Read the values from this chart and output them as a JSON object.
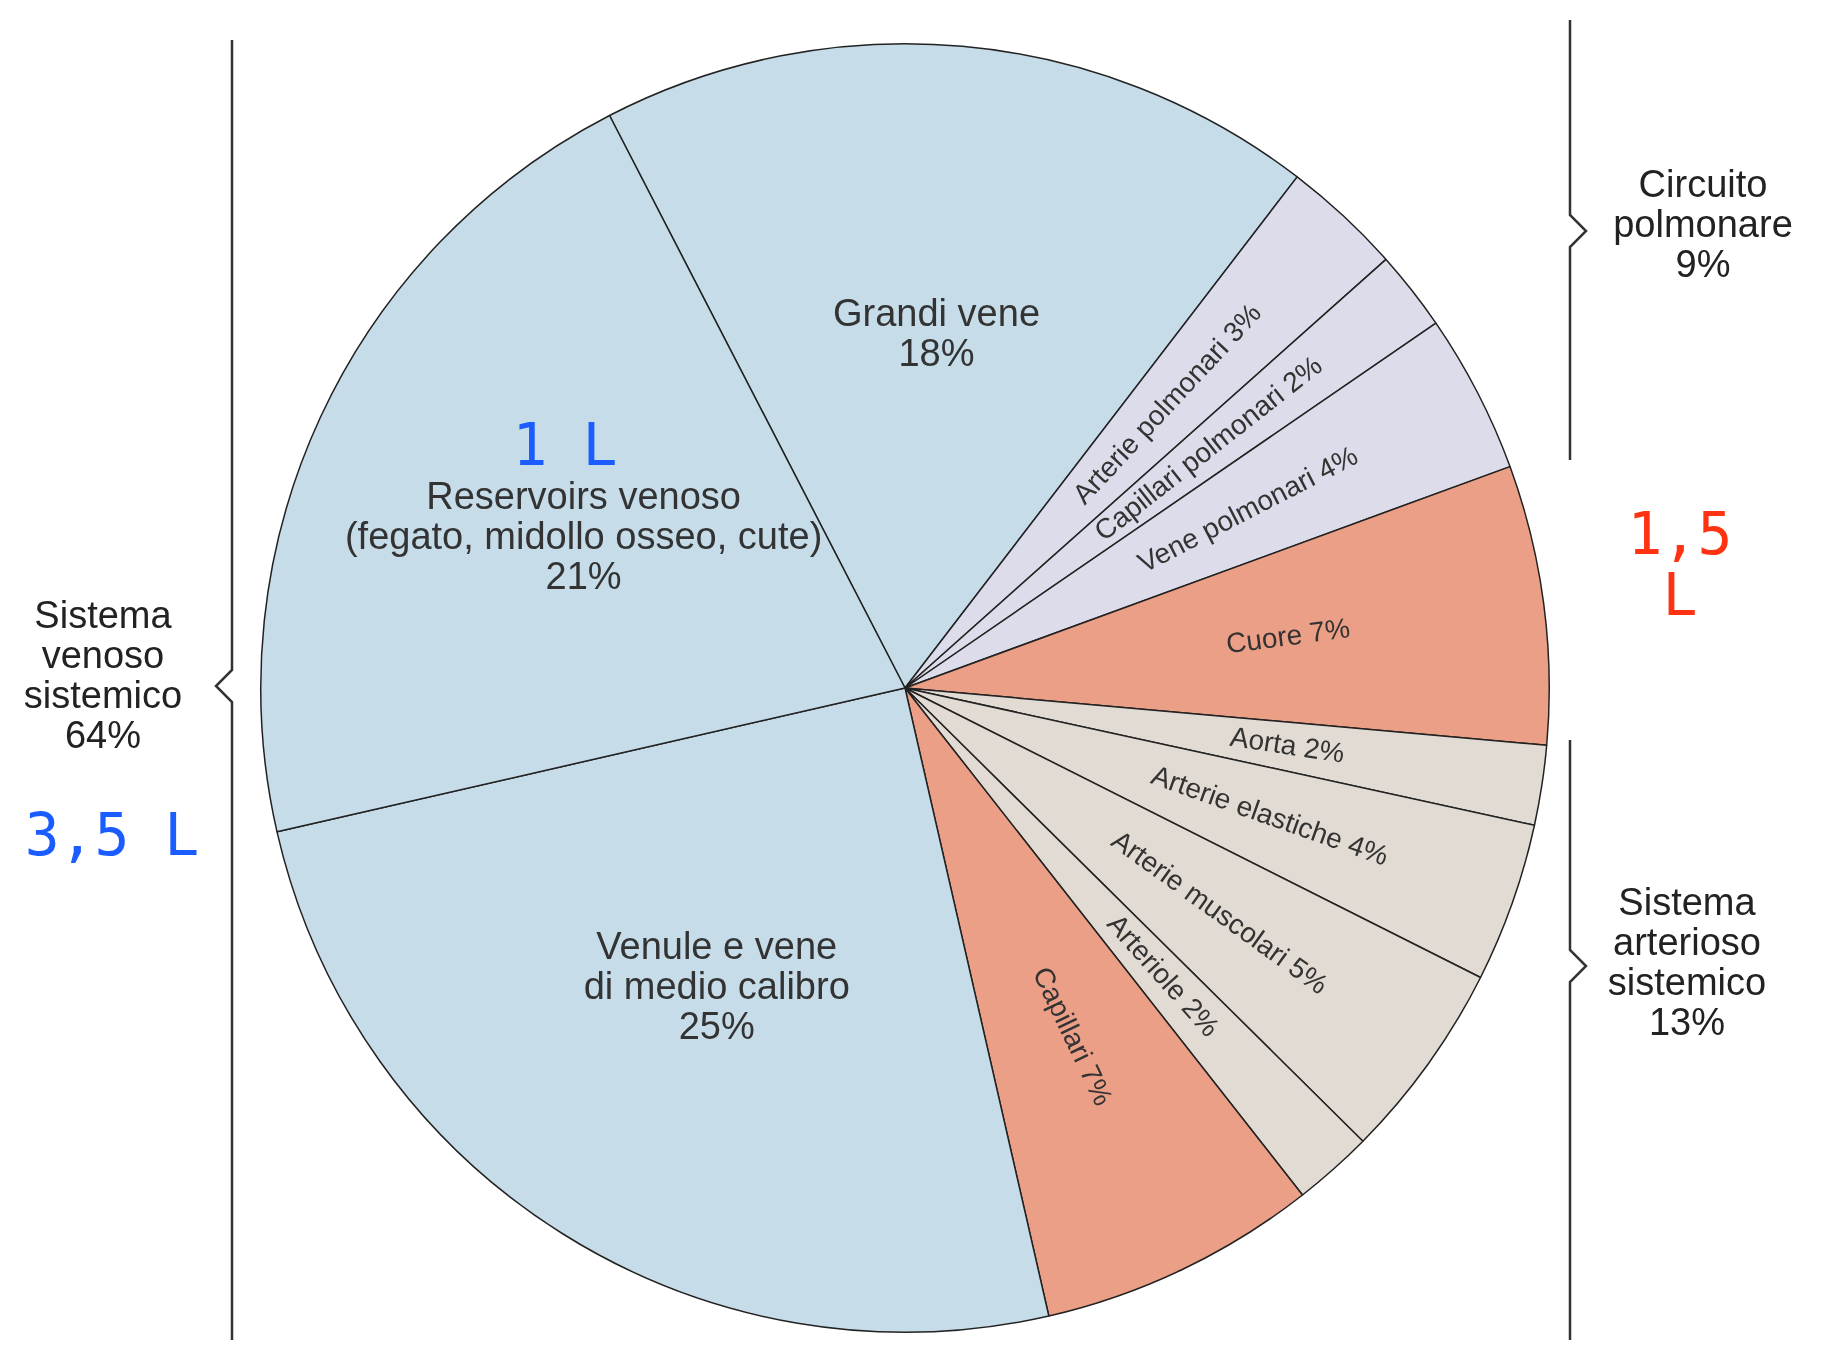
{
  "chart_data": {
    "type": "pie",
    "categories": [
      "Grandi vene",
      "Arterie polmonari",
      "Capillari polmonari",
      "Vene polmonari",
      "Cuore",
      "Aorta",
      "Arterie elastiche",
      "Arterie muscolari",
      "Arteriole",
      "Capillari",
      "Venule e vene\ndi medio calibro",
      "Reservoirs venoso\n(fegato, midollo osseo, cute)"
    ],
    "values": [
      18,
      3,
      2,
      4,
      7,
      2,
      4,
      5,
      2,
      7,
      25,
      21
    ],
    "value_labels": [
      "18%",
      "3%",
      "2%",
      "4%",
      "7%",
      "2%",
      "4%",
      "5%",
      "2%",
      "7%",
      "25%",
      "21%"
    ],
    "colors": [
      "#c6dde9",
      "#dcdcea",
      "#dcdcea",
      "#dcdcea",
      "#eb9f86",
      "#e2dbd3",
      "#e2dbd3",
      "#e2dbd3",
      "#e2dbd3",
      "#eb9f86",
      "#c6dde9",
      "#c6dde9"
    ],
    "legend": false,
    "annotations": [
      "Sistema\nvenoso\nsistemico\n64%",
      "Circuito\npolmonare\n9%",
      "Sistema\narterioso\nsistemico\n13%",
      "1 L",
      "1,5 L",
      "3,5 L"
    ]
  }
}
